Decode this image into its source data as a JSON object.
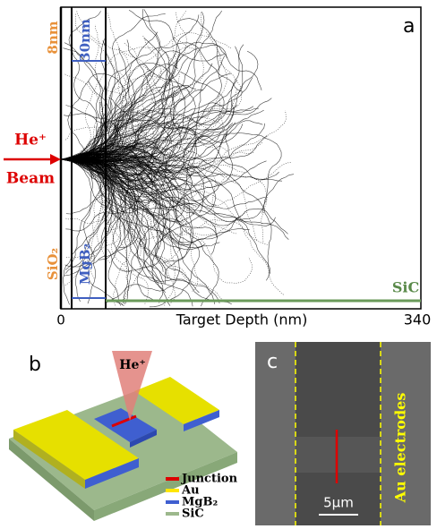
{
  "panel_a": {
    "label": "a",
    "sio2_thickness": "8nm",
    "mgb2_thickness": "30nm",
    "beam_ion": "He⁺",
    "beam_word": "Beam",
    "sio2": "SiO₂",
    "mgb2": "MgB₂",
    "sic": "SiC",
    "x_start": "0",
    "x_end": "340",
    "x_label": "Target Depth (nm)"
  },
  "panel_b": {
    "label": "b",
    "ion": "He⁺",
    "legend": [
      "Junction",
      "Au",
      "MgB₂",
      "SiC"
    ]
  },
  "panel_c": {
    "label": "c",
    "electrodes": "Au electrodes",
    "scale": "5μm"
  }
}
